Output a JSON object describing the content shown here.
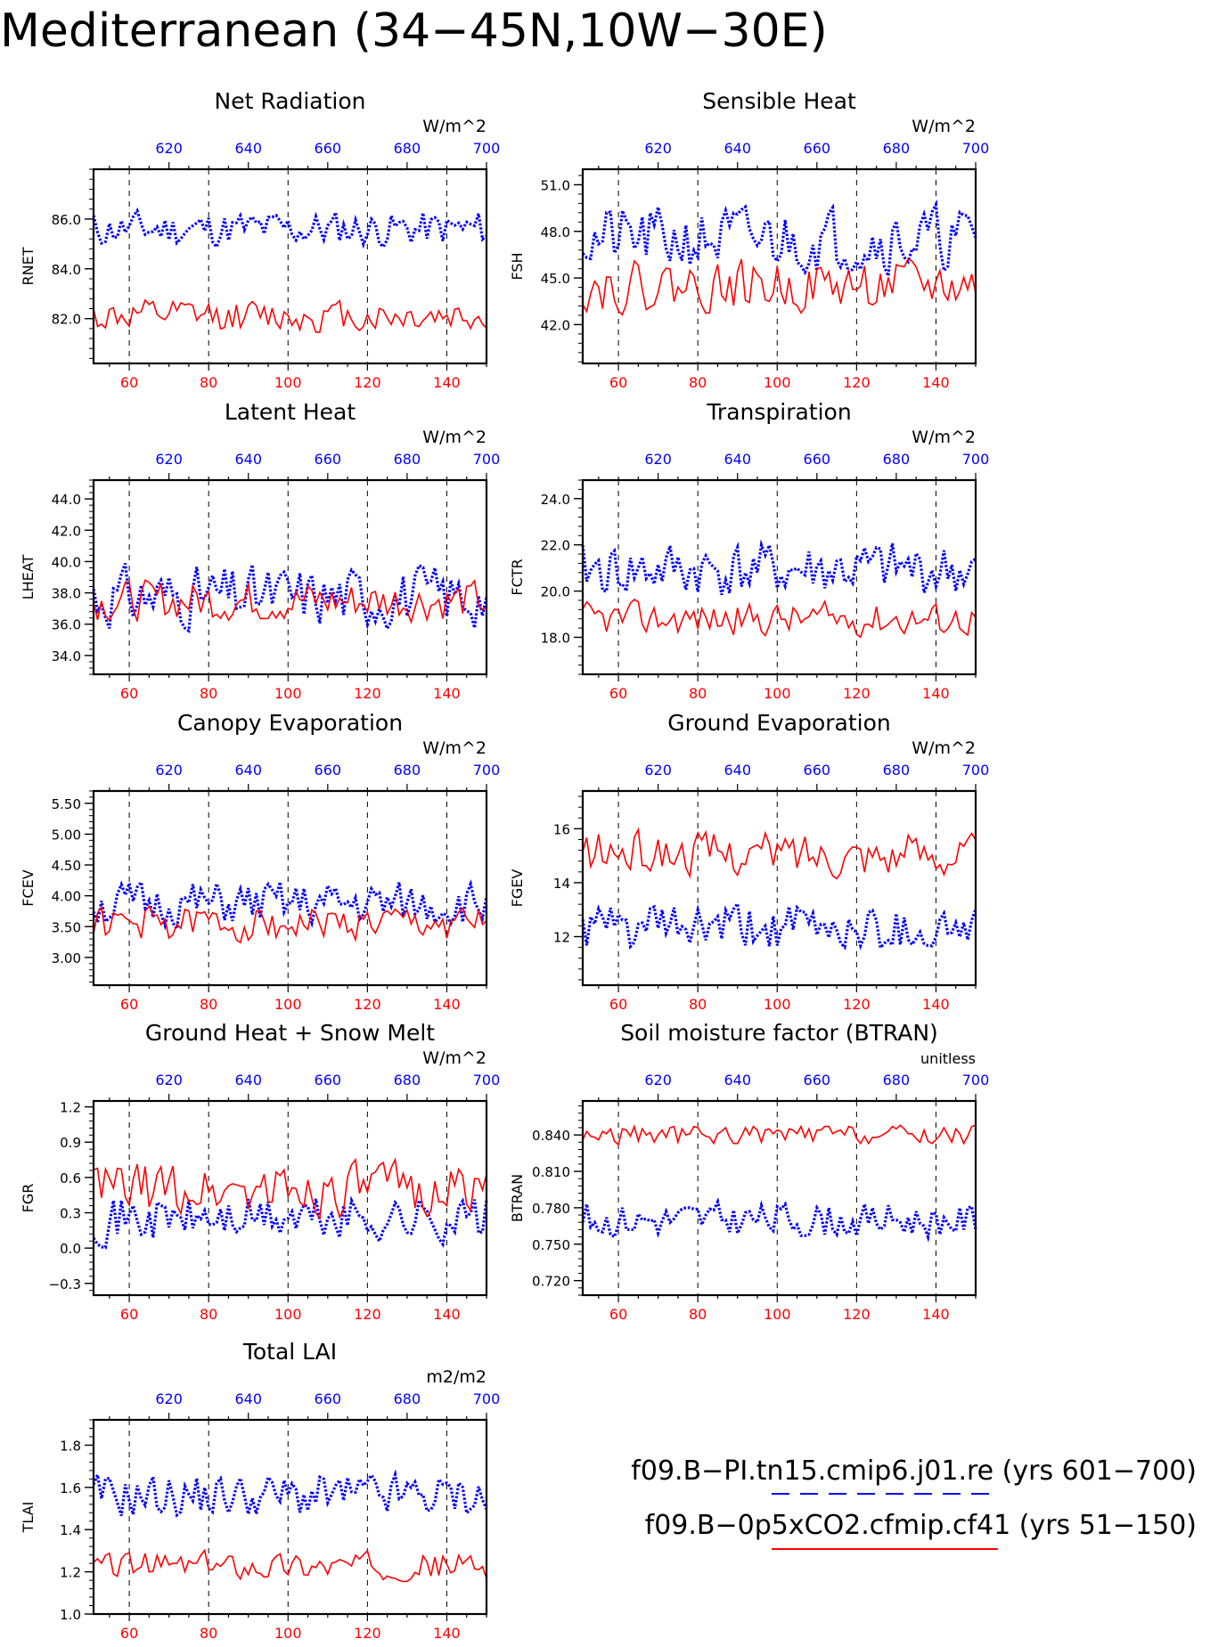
{
  "page_title": "Mediterranean (34−45N,10W−30E)",
  "colors": {
    "control": "#0000ff",
    "experiment": "#ff0000",
    "axis": "#000000"
  },
  "legend": {
    "control_label": "f09.B−PI.tn15.cmip6.j01.re (yrs 601−700)",
    "experiment_label": "f09.B−0p5xCO2.cfmip.cf41 (yrs 51−150)",
    "control_style": "blue-dashed",
    "experiment_style": "red-solid"
  },
  "chart_data": [
    {
      "type": "line",
      "title": "Net Radiation",
      "ylabel": "RNET",
      "units": "W/m^2",
      "ylim": [
        80.2,
        88.0
      ],
      "yticks": [
        82.0,
        84.0,
        86.0
      ],
      "ytick_labels": [
        "82.0",
        "84.0",
        "86.0"
      ],
      "ytick_minor": 0.4,
      "x_bottom": {
        "range": [
          51,
          150
        ],
        "ticks": [
          60,
          80,
          100,
          120,
          140
        ],
        "label_color": "red"
      },
      "x_top": {
        "range": [
          601,
          700
        ],
        "ticks": [
          620,
          640,
          660,
          680,
          700
        ],
        "label_color": "blue"
      },
      "grid": "dashed verticals at bottom ticks",
      "series": [
        {
          "key": "control",
          "style": "blue-dotted",
          "base": 85.6,
          "amp": 0.9,
          "seed": 11
        },
        {
          "key": "experiment",
          "style": "red-solid",
          "base": 82.1,
          "amp": 0.8,
          "seed": 12
        }
      ]
    },
    {
      "type": "line",
      "title": "Sensible Heat",
      "ylabel": "FSH",
      "units": "W/m^2",
      "ylim": [
        39.5,
        52.0
      ],
      "yticks": [
        42.0,
        45.0,
        48.0,
        51.0
      ],
      "ytick_labels": [
        "42.0",
        "45.0",
        "48.0",
        "51.0"
      ],
      "ytick_minor": 0.6,
      "x_bottom": {
        "range": [
          51,
          150
        ],
        "ticks": [
          60,
          80,
          100,
          120,
          140
        ],
        "label_color": "red"
      },
      "x_top": {
        "range": [
          601,
          700
        ],
        "ticks": [
          620,
          640,
          660,
          680,
          700
        ],
        "label_color": "blue"
      },
      "grid": "dashed verticals at bottom ticks",
      "series": [
        {
          "key": "control",
          "style": "blue-dotted",
          "base": 47.5,
          "amp": 2.6,
          "seed": 21
        },
        {
          "key": "experiment",
          "style": "red-solid",
          "base": 44.5,
          "amp": 2.0,
          "seed": 22
        }
      ]
    },
    {
      "type": "line",
      "title": "Latent Heat",
      "ylabel": "LHEAT",
      "units": "W/m^2",
      "ylim": [
        32.8,
        45.2
      ],
      "yticks": [
        34.0,
        36.0,
        38.0,
        40.0,
        42.0,
        44.0
      ],
      "ytick_labels": [
        "34.0",
        "36.0",
        "38.0",
        "40.0",
        "42.0",
        "44.0"
      ],
      "ytick_minor": 0.4,
      "x_bottom": {
        "range": [
          51,
          150
        ],
        "ticks": [
          60,
          80,
          100,
          120,
          140
        ],
        "label_color": "red"
      },
      "x_top": {
        "range": [
          601,
          700
        ],
        "ticks": [
          620,
          640,
          660,
          680,
          700
        ],
        "label_color": "blue"
      },
      "grid": "dashed verticals at bottom ticks",
      "series": [
        {
          "key": "control",
          "style": "blue-dotted",
          "base": 37.8,
          "amp": 2.4,
          "seed": 31
        },
        {
          "key": "experiment",
          "style": "red-solid",
          "base": 37.5,
          "amp": 1.6,
          "seed": 32
        }
      ]
    },
    {
      "type": "line",
      "title": "Transpiration",
      "ylabel": "FCTR",
      "units": "W/m^2",
      "ylim": [
        16.4,
        24.8
      ],
      "yticks": [
        18.0,
        20.0,
        22.0,
        24.0
      ],
      "ytick_labels": [
        "18.0",
        "20.0",
        "22.0",
        "24.0"
      ],
      "ytick_minor": 0.4,
      "x_bottom": {
        "range": [
          51,
          150
        ],
        "ticks": [
          60,
          80,
          100,
          120,
          140
        ],
        "label_color": "red"
      },
      "x_top": {
        "range": [
          601,
          700
        ],
        "ticks": [
          620,
          640,
          660,
          680,
          700
        ],
        "label_color": "blue"
      },
      "grid": "dashed verticals at bottom ticks",
      "series": [
        {
          "key": "control",
          "style": "blue-dotted",
          "base": 20.9,
          "amp": 1.5,
          "seed": 41
        },
        {
          "key": "experiment",
          "style": "red-solid",
          "base": 18.8,
          "amp": 0.9,
          "seed": 42
        }
      ]
    },
    {
      "type": "line",
      "title": "Canopy Evaporation",
      "ylabel": "FCEV",
      "units": "W/m^2",
      "ylim": [
        2.55,
        5.7
      ],
      "yticks": [
        3.0,
        3.5,
        4.0,
        4.5,
        5.0,
        5.5
      ],
      "ytick_labels": [
        "3.00",
        "3.50",
        "4.00",
        "4.50",
        "5.00",
        "5.50"
      ],
      "ytick_minor": 0.1,
      "x_bottom": {
        "range": [
          51,
          150
        ],
        "ticks": [
          60,
          80,
          100,
          120,
          140
        ],
        "label_color": "red"
      },
      "x_top": {
        "range": [
          601,
          700
        ],
        "ticks": [
          620,
          640,
          660,
          680,
          700
        ],
        "label_color": "blue"
      },
      "grid": "dashed verticals at bottom ticks",
      "series": [
        {
          "key": "control",
          "style": "blue-dotted",
          "base": 3.85,
          "amp": 0.45,
          "seed": 51
        },
        {
          "key": "experiment",
          "style": "red-solid",
          "base": 3.55,
          "amp": 0.35,
          "seed": 52
        }
      ]
    },
    {
      "type": "line",
      "title": "Ground Evaporation",
      "ylabel": "FGEV",
      "units": "W/m^2",
      "ylim": [
        10.2,
        17.4
      ],
      "yticks": [
        12,
        14,
        16
      ],
      "ytick_labels": [
        "12",
        "14",
        "16"
      ],
      "ytick_minor": 0.4,
      "x_bottom": {
        "range": [
          51,
          150
        ],
        "ticks": [
          60,
          80,
          100,
          120,
          140
        ],
        "label_color": "red"
      },
      "x_top": {
        "range": [
          601,
          700
        ],
        "ticks": [
          620,
          640,
          660,
          680,
          700
        ],
        "label_color": "blue"
      },
      "grid": "dashed verticals at bottom ticks",
      "series": [
        {
          "key": "control",
          "style": "blue-dotted",
          "base": 12.3,
          "amp": 1.1,
          "seed": 61
        },
        {
          "key": "experiment",
          "style": "red-solid",
          "base": 15.1,
          "amp": 1.0,
          "seed": 62
        }
      ]
    },
    {
      "type": "line",
      "title": "Ground Heat + Snow Melt",
      "ylabel": "FGR",
      "units": "W/m^2",
      "ylim": [
        -0.4,
        1.25
      ],
      "yticks": [
        -0.3,
        0.0,
        0.3,
        0.6,
        0.9,
        1.2
      ],
      "ytick_labels": [
        "−0.3",
        "0.0",
        "0.3",
        "0.6",
        "0.9",
        "1.2"
      ],
      "ytick_minor": 0.06,
      "x_bottom": {
        "range": [
          51,
          150
        ],
        "ticks": [
          60,
          80,
          100,
          120,
          140
        ],
        "label_color": "red"
      },
      "x_top": {
        "range": [
          601,
          700
        ],
        "ticks": [
          620,
          640,
          660,
          680,
          700
        ],
        "label_color": "blue"
      },
      "grid": "dashed verticals at bottom ticks",
      "series": [
        {
          "key": "control",
          "style": "blue-dotted",
          "base": 0.25,
          "amp": 0.25,
          "seed": 71
        },
        {
          "key": "experiment",
          "style": "red-solid",
          "base": 0.5,
          "amp": 0.28,
          "seed": 72
        }
      ]
    },
    {
      "type": "line",
      "title": "Soil moisture factor (BTRAN)",
      "ylabel": "BTRAN",
      "units": "unitless",
      "ylim": [
        0.708,
        0.868
      ],
      "yticks": [
        0.72,
        0.75,
        0.78,
        0.81,
        0.84
      ],
      "ytick_labels": [
        "0.720",
        "0.750",
        "0.780",
        "0.810",
        "0.840"
      ],
      "ytick_minor": 0.006,
      "x_bottom": {
        "range": [
          51,
          150
        ],
        "ticks": [
          60,
          80,
          100,
          120,
          140
        ],
        "label_color": "red"
      },
      "x_top": {
        "range": [
          601,
          700
        ],
        "ticks": [
          620,
          640,
          660,
          680,
          700
        ],
        "label_color": "blue"
      },
      "grid": "dashed verticals at bottom ticks",
      "series": [
        {
          "key": "control",
          "style": "blue-dotted",
          "base": 0.77,
          "amp": 0.018,
          "seed": 81
        },
        {
          "key": "experiment",
          "style": "red-solid",
          "base": 0.84,
          "amp": 0.01,
          "seed": 82
        }
      ]
    },
    {
      "type": "line",
      "title": "Total LAI",
      "ylabel": "TLAI",
      "units": "m2/m2",
      "ylim": [
        1.0,
        1.92
      ],
      "yticks": [
        1.0,
        1.2,
        1.4,
        1.6,
        1.8
      ],
      "ytick_labels": [
        "1.0",
        "1.2",
        "1.4",
        "1.6",
        "1.8"
      ],
      "ytick_minor": 0.04,
      "x_bottom": {
        "range": [
          51,
          150
        ],
        "ticks": [
          60,
          80,
          100,
          120,
          140
        ],
        "label_color": "red"
      },
      "x_top": {
        "range": [
          601,
          700
        ],
        "ticks": [
          620,
          640,
          660,
          680,
          700
        ],
        "label_color": "blue"
      },
      "grid": "dashed verticals at bottom ticks",
      "series": [
        {
          "key": "control",
          "style": "blue-dotted",
          "base": 1.56,
          "amp": 0.13,
          "seed": 91
        },
        {
          "key": "experiment",
          "style": "red-solid",
          "base": 1.23,
          "amp": 0.08,
          "seed": 92
        }
      ]
    }
  ]
}
